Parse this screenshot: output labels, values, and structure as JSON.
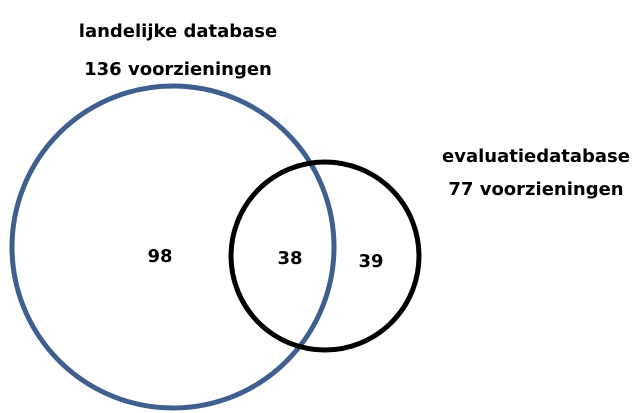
{
  "sets": [
    {
      "label": "landelijke database",
      "count": "136 voorzieningen"
    },
    {
      "label": "evaluatiedatabase",
      "count": "77 voorzieningen"
    }
  ],
  "regions": {
    "only_first": "98",
    "both": "38",
    "only_second": "39"
  }
}
